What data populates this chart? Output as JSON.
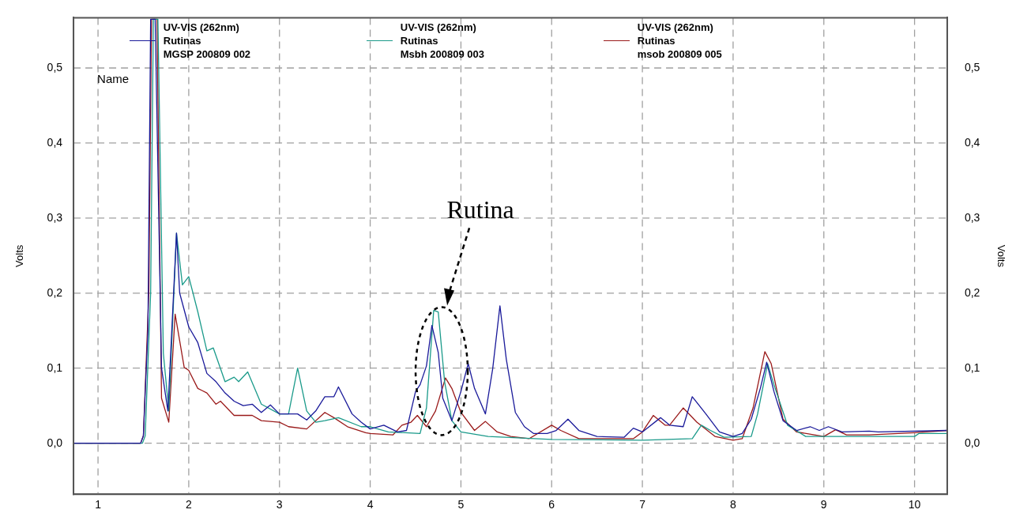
{
  "chart_data": {
    "type": "line",
    "xlim": [
      0.73,
      10.36
    ],
    "xticks": [
      1,
      2,
      3,
      4,
      5,
      6,
      7,
      8,
      9,
      10
    ],
    "ylim": [
      -0.068,
      0.567
    ],
    "yticks": [
      {
        "value": 0,
        "label": "0,0"
      },
      {
        "value": 0.1,
        "label": "0,1"
      },
      {
        "value": 0.2,
        "label": "0,2"
      },
      {
        "value": 0.3,
        "label": "0,3"
      },
      {
        "value": 0.4,
        "label": "0,4"
      },
      {
        "value": 0.5,
        "label": "0,5"
      }
    ],
    "y2lim": [
      -0.068,
      0.567
    ],
    "y2ticks": [
      {
        "value": 0,
        "label": "0,0"
      },
      {
        "value": 0.1,
        "label": "0,1"
      },
      {
        "value": 0.2,
        "label": "0,2"
      },
      {
        "value": 0.3,
        "label": "0,3"
      },
      {
        "value": 0.4,
        "label": "0,4"
      },
      {
        "value": 0.5,
        "label": "0,5"
      }
    ],
    "ylabel": "Volts",
    "y2label": "Volts",
    "grid": true,
    "legend": "top",
    "marker": "none",
    "line_style": "solid",
    "annotations": [
      "Name",
      "Rutina"
    ],
    "series": [
      {
        "name": "UV-VIS (262nm)\nRutinas\nMGSP  200809  002",
        "color": "#1a1a9a",
        "x": [
          0.73,
          1.47,
          1.5,
          1.55,
          1.58,
          1.63,
          1.7,
          1.77,
          1.865,
          1.9,
          2.0,
          2.1,
          2.2,
          2.3,
          2.4,
          2.5,
          2.6,
          2.7,
          2.8,
          2.9,
          3.0,
          3.2,
          3.3,
          3.4,
          3.5,
          3.6,
          3.65,
          3.8,
          3.9,
          4.0,
          4.15,
          4.3,
          4.4,
          4.5,
          4.55,
          4.62,
          4.68,
          4.75,
          4.8,
          4.9,
          5.0,
          5.08,
          5.15,
          5.27,
          5.35,
          5.43,
          5.5,
          5.6,
          5.7,
          5.8,
          5.95,
          6.05,
          6.18,
          6.3,
          6.5,
          6.8,
          6.9,
          7.0,
          7.2,
          7.3,
          7.45,
          7.55,
          7.7,
          7.85,
          8.0,
          8.1,
          8.2,
          8.3,
          8.37,
          8.45,
          8.55,
          8.7,
          8.85,
          8.95,
          9.05,
          9.2,
          9.5,
          9.6,
          10.36
        ],
        "values": [
          0,
          0,
          0.01,
          0.15,
          0.565,
          0.565,
          0.1,
          0.043,
          0.28,
          0.2,
          0.155,
          0.134,
          0.093,
          0.082,
          0.067,
          0.056,
          0.05,
          0.052,
          0.041,
          0.051,
          0.039,
          0.039,
          0.031,
          0.043,
          0.062,
          0.062,
          0.075,
          0.039,
          0.028,
          0.019,
          0.024,
          0.015,
          0.017,
          0.069,
          0.078,
          0.103,
          0.157,
          0.121,
          0.06,
          0.03,
          0.069,
          0.106,
          0.073,
          0.039,
          0.099,
          0.183,
          0.112,
          0.041,
          0.022,
          0.013,
          0.013,
          0.017,
          0.032,
          0.017,
          0.009,
          0.008,
          0.02,
          0.015,
          0.034,
          0.024,
          0.022,
          0.062,
          0.039,
          0.015,
          0.009,
          0.013,
          0.032,
          0.073,
          0.108,
          0.069,
          0.03,
          0.017,
          0.022,
          0.017,
          0.022,
          0.015,
          0.016,
          0.015,
          0.017
        ]
      },
      {
        "name": "UV-VIS (262nm)\nRutinas\nMsbh  200809  003",
        "color": "#1a9a8a",
        "x": [
          0.73,
          1.49,
          1.52,
          1.58,
          1.61,
          1.66,
          1.72,
          1.78,
          1.865,
          1.93,
          2.0,
          2.1,
          2.2,
          2.27,
          2.4,
          2.5,
          2.55,
          2.65,
          2.8,
          3.0,
          3.1,
          3.2,
          3.3,
          3.4,
          3.5,
          3.65,
          3.9,
          4.0,
          4.2,
          4.55,
          4.62,
          4.7,
          4.75,
          4.82,
          4.9,
          5.0,
          5.3,
          6.0,
          7.0,
          7.55,
          7.65,
          7.75,
          7.9,
          8.2,
          8.27,
          8.38,
          8.45,
          8.6,
          8.8,
          10.0,
          10.05,
          10.36
        ],
        "values": [
          0,
          0,
          0.01,
          0.2,
          0.565,
          0.565,
          0.12,
          0.043,
          0.28,
          0.211,
          0.222,
          0.175,
          0.123,
          0.127,
          0.082,
          0.088,
          0.082,
          0.095,
          0.052,
          0.039,
          0.039,
          0.1,
          0.043,
          0.028,
          0.03,
          0.034,
          0.022,
          0.022,
          0.015,
          0.013,
          0.047,
          0.177,
          0.175,
          0.082,
          0.03,
          0.015,
          0.009,
          0.005,
          0.004,
          0.006,
          0.024,
          0.017,
          0.008,
          0.009,
          0.039,
          0.106,
          0.078,
          0.024,
          0.009,
          0.009,
          0.013,
          0.013
        ]
      },
      {
        "name": "UV-VIS (262nm)\nRutinas\nmsob  200809  005",
        "color": "#9a1a1a",
        "x": [
          0.73,
          1.47,
          1.5,
          1.56,
          1.59,
          1.65,
          1.7,
          1.78,
          1.85,
          1.95,
          2.0,
          2.1,
          2.2,
          2.3,
          2.35,
          2.5,
          2.7,
          2.8,
          3.0,
          3.1,
          3.3,
          3.5,
          3.6,
          3.75,
          3.95,
          4.0,
          4.25,
          4.35,
          4.45,
          4.52,
          4.62,
          4.72,
          4.83,
          4.9,
          5.0,
          5.15,
          5.27,
          5.4,
          5.55,
          5.75,
          6.0,
          6.1,
          6.3,
          6.9,
          7.0,
          7.12,
          7.25,
          7.3,
          7.45,
          7.6,
          7.8,
          8.0,
          8.1,
          8.22,
          8.35,
          8.42,
          8.55,
          8.7,
          9.0,
          9.13,
          9.25,
          9.5,
          10.0,
          10.36
        ],
        "values": [
          0,
          0,
          0.01,
          0.2,
          0.565,
          0.565,
          0.06,
          0.028,
          0.172,
          0.101,
          0.097,
          0.073,
          0.067,
          0.052,
          0.056,
          0.037,
          0.037,
          0.03,
          0.028,
          0.022,
          0.019,
          0.041,
          0.034,
          0.022,
          0.014,
          0.013,
          0.011,
          0.024,
          0.028,
          0.037,
          0.022,
          0.043,
          0.087,
          0.073,
          0.041,
          0.017,
          0.029,
          0.015,
          0.009,
          0.006,
          0.024,
          0.017,
          0.006,
          0.006,
          0.015,
          0.037,
          0.024,
          0.024,
          0.047,
          0.028,
          0.009,
          0.004,
          0.006,
          0.047,
          0.122,
          0.106,
          0.032,
          0.015,
          0.009,
          0.018,
          0.011,
          0.011,
          0.014,
          0.017
        ]
      }
    ]
  }
}
